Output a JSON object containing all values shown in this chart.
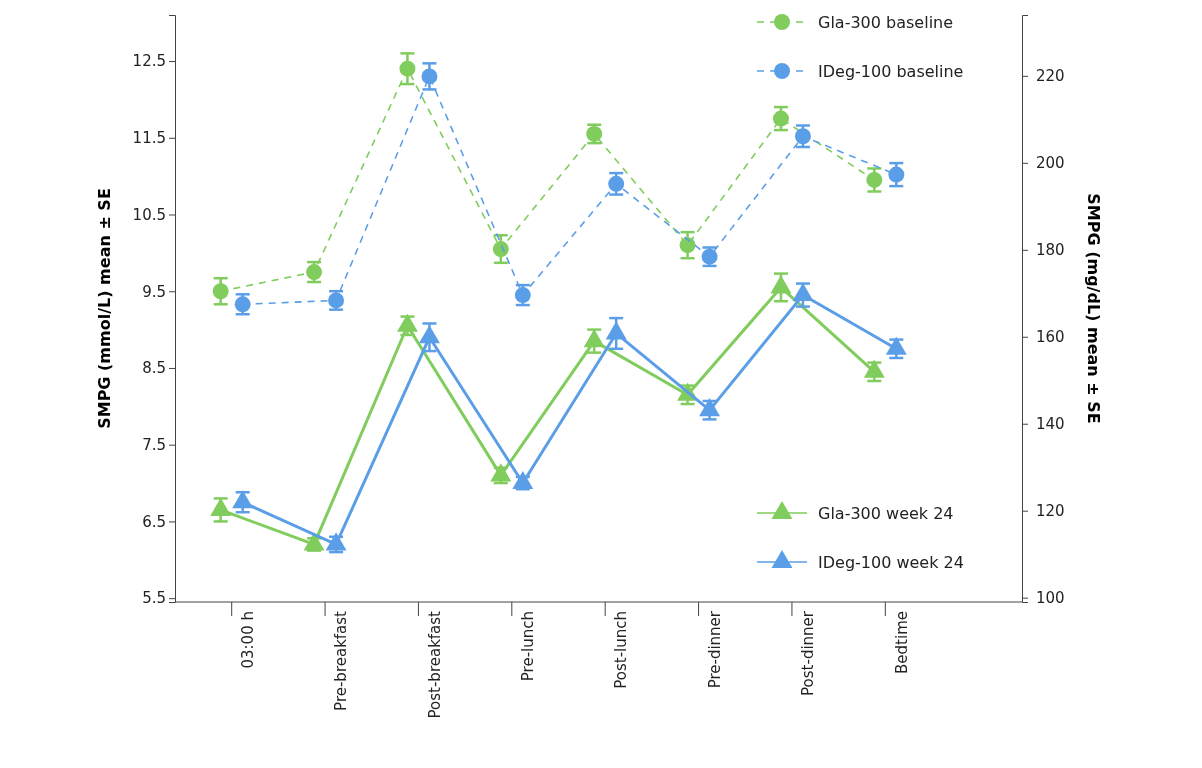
{
  "chart_data": {
    "type": "line",
    "ylabel": "SMPG (mmol/L) mean ± SE",
    "y2label": "SMPG (mg/dL) mean ± SE",
    "categories": [
      "03:00 h",
      "Pre-breakfast",
      "Post-breakfast",
      "Pre-lunch",
      "Post-lunch",
      "Pre-dinner",
      "Post-dinner",
      "Bedtime"
    ],
    "series": [
      {
        "name": "Gla-300 baseline",
        "color": "#80cc5c",
        "marker": "circle",
        "line_style": "dashed",
        "values": [
          9.5,
          9.75,
          12.4,
          10.05,
          11.55,
          10.1,
          11.75,
          10.95
        ],
        "errors": [
          0.17,
          0.13,
          0.2,
          0.18,
          0.12,
          0.17,
          0.15,
          0.15
        ]
      },
      {
        "name": "IDeg-100 baseline",
        "color": "#5b9ee8",
        "marker": "circle",
        "line_style": "dashed",
        "values": [
          9.33,
          9.38,
          12.3,
          9.45,
          10.9,
          9.95,
          11.52,
          11.02
        ],
        "errors": [
          0.13,
          0.12,
          0.17,
          0.13,
          0.14,
          0.12,
          0.14,
          0.15
        ]
      },
      {
        "name": "Gla-300 week 24",
        "color": "#80cc5c",
        "marker": "triangle",
        "line_style": "solid",
        "values": [
          6.65,
          6.2,
          9.05,
          7.1,
          8.85,
          8.15,
          9.55,
          8.45
        ],
        "errors": [
          0.15,
          0.08,
          0.12,
          0.1,
          0.15,
          0.12,
          0.18,
          0.12
        ]
      },
      {
        "name": "IDeg-100 week 24",
        "color": "#5b9ee8",
        "marker": "triangle",
        "line_style": "solid",
        "values": [
          6.75,
          6.2,
          8.9,
          7.0,
          8.95,
          7.95,
          9.45,
          8.75
        ],
        "errors": [
          0.13,
          0.1,
          0.18,
          0.08,
          0.2,
          0.12,
          0.15,
          0.12
        ]
      }
    ],
    "ylim": [
      5.45,
      13.1
    ],
    "yticks": [
      5.5,
      6.5,
      7.5,
      8.5,
      9.5,
      10.5,
      11.5,
      12.5
    ],
    "y2lim": [
      99,
      234
    ],
    "y2ticks": [
      100,
      120,
      140,
      160,
      180,
      200,
      220
    ],
    "legend": "right",
    "grid": false
  }
}
